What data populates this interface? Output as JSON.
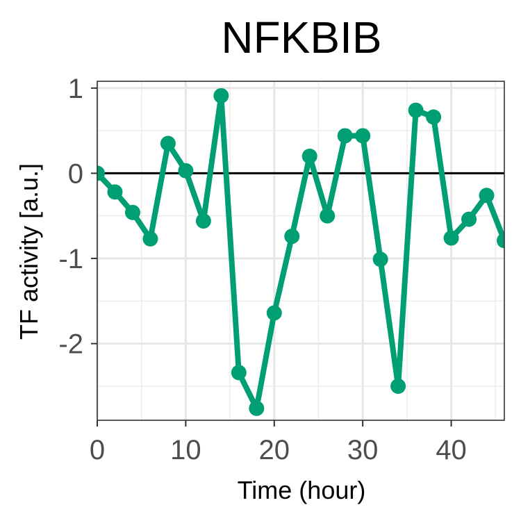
{
  "chart_data": {
    "type": "line",
    "title": "NFKBIB",
    "xlabel": "Time (hour)",
    "ylabel": "TF activity [a.u.]",
    "xlim": [
      0,
      46
    ],
    "ylim": [
      -2.9,
      1.08
    ],
    "x_ticks": [
      0,
      10,
      20,
      30,
      40
    ],
    "y_ticks": [
      -2,
      -1,
      0,
      1
    ],
    "x_tick_labels": [
      "0",
      "10",
      "20",
      "30",
      "40"
    ],
    "y_tick_labels": [
      "-2",
      "-1",
      "0",
      "1"
    ],
    "x_minor_ticks": [
      5,
      15,
      25,
      35,
      45
    ],
    "y_minor_ticks": [
      -2.5,
      -1.5,
      -0.5,
      0.5
    ],
    "grid": true,
    "reference_line": 0,
    "series": [
      {
        "color": "#009E73",
        "x": [
          0,
          2,
          4,
          6,
          8,
          10,
          12,
          14,
          16,
          18,
          20,
          22,
          24,
          26,
          28,
          30,
          32,
          34,
          36,
          38,
          40,
          42,
          44,
          46
        ],
        "y": [
          0.0,
          -0.22,
          -0.46,
          -0.77,
          0.35,
          0.03,
          -0.56,
          0.91,
          -2.34,
          -2.76,
          -1.64,
          -0.74,
          0.2,
          -0.5,
          0.44,
          0.44,
          -1.01,
          -2.5,
          0.74,
          0.66,
          -0.76,
          -0.54,
          -0.26,
          -0.79
        ]
      }
    ]
  }
}
